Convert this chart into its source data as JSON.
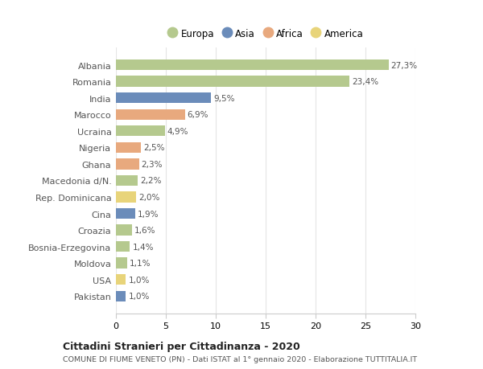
{
  "countries": [
    "Albania",
    "Romania",
    "India",
    "Marocco",
    "Ucraina",
    "Nigeria",
    "Ghana",
    "Macedonia d/N.",
    "Rep. Dominicana",
    "Cina",
    "Croazia",
    "Bosnia-Erzegovina",
    "Moldova",
    "USA",
    "Pakistan"
  ],
  "values": [
    27.3,
    23.4,
    9.5,
    6.9,
    4.9,
    2.5,
    2.3,
    2.2,
    2.0,
    1.9,
    1.6,
    1.4,
    1.1,
    1.0,
    1.0
  ],
  "labels": [
    "27,3%",
    "23,4%",
    "9,5%",
    "6,9%",
    "4,9%",
    "2,5%",
    "2,3%",
    "2,2%",
    "2,0%",
    "1,9%",
    "1,6%",
    "1,4%",
    "1,1%",
    "1,0%",
    "1,0%"
  ],
  "continents": [
    "Europa",
    "Europa",
    "Asia",
    "Africa",
    "Europa",
    "Africa",
    "Africa",
    "Europa",
    "America",
    "Asia",
    "Europa",
    "Europa",
    "Europa",
    "America",
    "Asia"
  ],
  "continent_colors": {
    "Europa": "#b5c98e",
    "Asia": "#6b8cba",
    "Africa": "#e8a97e",
    "America": "#e8d47a"
  },
  "legend_order": [
    "Europa",
    "Asia",
    "Africa",
    "America"
  ],
  "title": "Cittadini Stranieri per Cittadinanza - 2020",
  "subtitle": "COMUNE DI FIUME VENETO (PN) - Dati ISTAT al 1° gennaio 2020 - Elaborazione TUTTITALIA.IT",
  "xlim": [
    0,
    30
  ],
  "xticks": [
    0,
    5,
    10,
    15,
    20,
    25,
    30
  ],
  "background_color": "#ffffff",
  "grid_color": "#e5e5e5"
}
